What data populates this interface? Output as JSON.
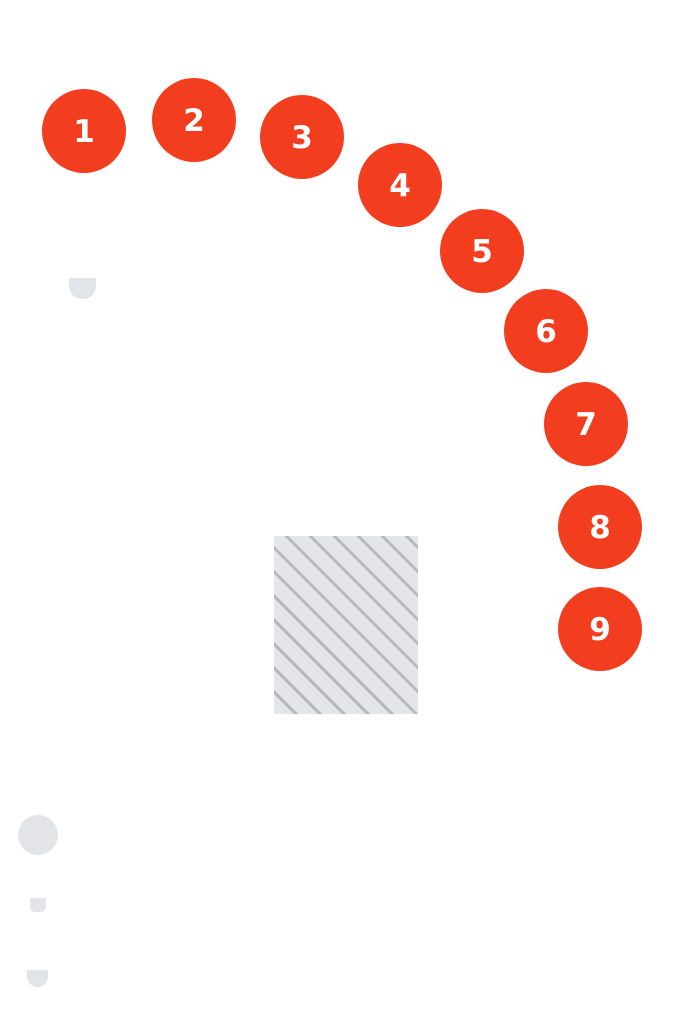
{
  "markers": [
    {
      "label": "1"
    },
    {
      "label": "2"
    },
    {
      "label": "3"
    },
    {
      "label": "4"
    },
    {
      "label": "5"
    },
    {
      "label": "6"
    },
    {
      "label": "7"
    },
    {
      "label": "8"
    },
    {
      "label": "9"
    }
  ],
  "colors": {
    "marker_fill": "#f23d1f",
    "marker_text": "#ffffff",
    "placeholder_fill": "#e5e6ea",
    "placeholder_stripe": "#b7b9be",
    "shape_fill": "#e3e4e8"
  },
  "icons": {
    "top_shape": "cup-shape-icon",
    "circle_shape": "circle-shape-icon",
    "small_shape": "small-tab-shape-icon",
    "bottom_shape": "cup-shape-icon"
  }
}
